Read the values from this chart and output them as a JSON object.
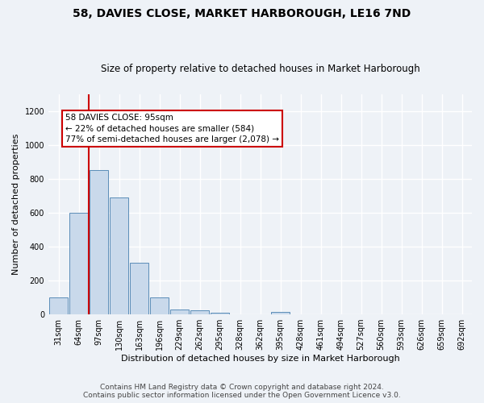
{
  "title": "58, DAVIES CLOSE, MARKET HARBOROUGH, LE16 7ND",
  "subtitle": "Size of property relative to detached houses in Market Harborough",
  "xlabel": "Distribution of detached houses by size in Market Harborough",
  "ylabel": "Number of detached properties",
  "bar_color": "#c9d9eb",
  "bar_edgecolor": "#5b8db8",
  "categories": [
    "31sqm",
    "64sqm",
    "97sqm",
    "130sqm",
    "163sqm",
    "196sqm",
    "229sqm",
    "262sqm",
    "295sqm",
    "328sqm",
    "362sqm",
    "395sqm",
    "428sqm",
    "461sqm",
    "494sqm",
    "527sqm",
    "560sqm",
    "593sqm",
    "626sqm",
    "659sqm",
    "692sqm"
  ],
  "values": [
    100,
    600,
    850,
    690,
    305,
    100,
    30,
    25,
    10,
    0,
    0,
    15,
    0,
    0,
    0,
    0,
    0,
    0,
    0,
    0,
    0
  ],
  "ylim": [
    0,
    1300
  ],
  "yticks": [
    0,
    200,
    400,
    600,
    800,
    1000,
    1200
  ],
  "property_line_x": 1.5,
  "annotation_title": "58 DAVIES CLOSE: 95sqm",
  "annotation_line1": "← 22% of detached houses are smaller (584)",
  "annotation_line2": "77% of semi-detached houses are larger (2,078) →",
  "footer_line1": "Contains HM Land Registry data © Crown copyright and database right 2024.",
  "footer_line2": "Contains public sector information licensed under the Open Government Licence v3.0.",
  "background_color": "#eef2f7",
  "grid_color": "#ffffff",
  "annotation_box_facecolor": "#ffffff",
  "annotation_box_edgecolor": "#cc0000",
  "property_line_color": "#cc0000",
  "title_fontsize": 10,
  "subtitle_fontsize": 8.5,
  "ylabel_fontsize": 8,
  "xlabel_fontsize": 8,
  "tick_fontsize": 7,
  "annotation_fontsize": 7.5,
  "footer_fontsize": 6.5
}
